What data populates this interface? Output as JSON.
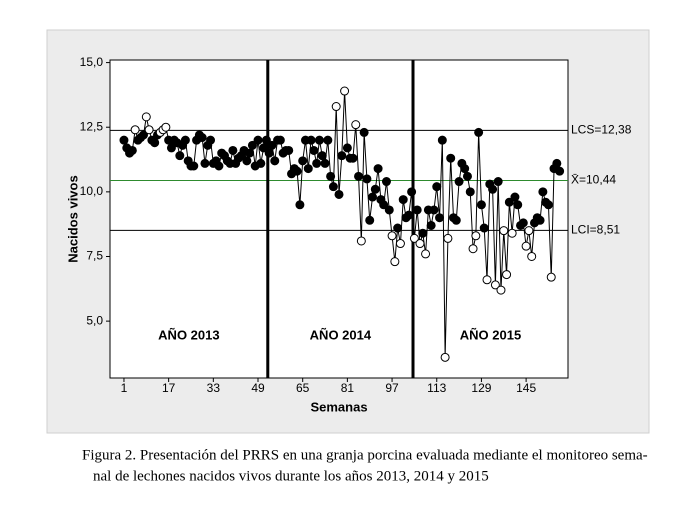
{
  "chart_data": {
    "type": "control",
    "y_label": "Nacidos vivos",
    "x_label": "Semanas",
    "xlim": [
      -4,
      160
    ],
    "ylim": [
      2.8,
      15.1
    ],
    "xticks": [
      1,
      17,
      33,
      49,
      65,
      81,
      97,
      113,
      129,
      145
    ],
    "yticks": [
      {
        "value": 15,
        "label": "15,0"
      },
      {
        "value": 12.5,
        "label": "12,5"
      },
      {
        "value": 10,
        "label": "10,0"
      },
      {
        "value": 7.5,
        "label": "7,5"
      },
      {
        "value": 5,
        "label": "5,0"
      }
    ],
    "reference_lines": [
      {
        "value": 12.38,
        "label": "LCS=12,38",
        "color": "#000000"
      },
      {
        "value": 10.44,
        "label": "X̄=10,44",
        "color": "#2e8b2e"
      },
      {
        "value": 8.51,
        "label": "LCI=8,51",
        "color": "#000000"
      }
    ],
    "period_dividers": [
      52.5,
      104.5
    ],
    "periods": [
      "AÑO 2013",
      "AÑO 2014",
      "AÑO 2015"
    ],
    "series": [
      {
        "color": "#000000",
        "x": [
          1,
          2,
          3,
          4,
          5,
          6,
          7,
          8,
          9,
          10,
          11,
          12,
          13,
          14,
          15,
          16,
          17,
          18,
          19,
          20,
          21,
          22,
          23,
          24,
          25,
          26,
          27,
          28,
          29,
          30,
          31,
          32,
          33,
          34,
          35,
          36,
          37,
          38,
          39,
          40,
          41,
          42,
          43,
          44,
          45,
          46,
          47,
          48,
          49,
          50,
          51,
          52,
          53,
          54,
          55,
          56,
          57,
          58,
          59,
          60,
          61,
          62,
          63,
          64,
          65,
          66,
          67,
          68,
          69,
          70,
          71,
          72,
          73,
          74,
          75,
          76,
          77,
          78,
          79,
          80,
          81,
          82,
          83,
          84,
          85,
          86,
          87,
          88,
          89,
          90,
          91,
          92,
          93,
          94,
          95,
          96,
          97,
          98,
          99,
          100,
          101,
          102,
          103,
          104,
          105,
          106,
          107,
          108,
          109,
          110,
          111,
          112,
          113,
          114,
          115,
          116,
          117,
          118,
          119,
          120,
          121,
          122,
          123,
          124,
          125,
          126,
          127,
          128,
          129,
          130,
          131,
          132,
          133,
          134,
          135,
          136,
          137,
          138,
          139,
          140,
          141,
          142,
          143,
          144,
          145,
          146,
          147,
          148,
          149,
          150,
          151,
          152,
          153,
          154,
          155,
          156,
          157
        ],
        "values": [
          12.0,
          11.7,
          11.5,
          11.6,
          12.4,
          12.0,
          12.1,
          12.2,
          12.9,
          12.4,
          12.0,
          11.9,
          12.2,
          12.3,
          12.4,
          12.5,
          12.0,
          11.7,
          12.0,
          11.9,
          11.4,
          11.8,
          12.0,
          11.2,
          11.0,
          11.0,
          12.0,
          12.2,
          12.1,
          11.1,
          11.8,
          12.0,
          11.1,
          11.2,
          11.0,
          11.5,
          11.4,
          11.2,
          11.1,
          11.6,
          11.1,
          11.3,
          11.4,
          11.6,
          11.2,
          11.5,
          11.8,
          11.0,
          12.0,
          11.1,
          11.7,
          12.0,
          11.5,
          11.8,
          11.2,
          12.0,
          12.0,
          11.5,
          11.6,
          11.6,
          10.7,
          10.9,
          10.8,
          9.5,
          11.2,
          12.0,
          10.9,
          12.0,
          11.6,
          11.1,
          12.0,
          11.4,
          11.1,
          12.0,
          10.6,
          10.2,
          13.3,
          9.9,
          11.4,
          13.9,
          11.7,
          11.3,
          11.3,
          12.6,
          10.6,
          8.1,
          12.3,
          10.5,
          8.9,
          9.8,
          10.1,
          10.9,
          9.7,
          9.5,
          10.4,
          9.3,
          8.3,
          7.3,
          8.6,
          8.0,
          9.7,
          9.0,
          9.1,
          10.0,
          8.2,
          9.3,
          8.0,
          8.4,
          7.6,
          9.3,
          8.7,
          9.3,
          10.2,
          9.0,
          12.0,
          3.6,
          8.2,
          11.3,
          9.0,
          8.9,
          10.4,
          11.1,
          10.9,
          10.6,
          10.0,
          7.8,
          8.3,
          12.3,
          9.5,
          8.6,
          6.6,
          10.3,
          10.1,
          6.4,
          10.4,
          6.2,
          8.5,
          6.8,
          9.6,
          8.4,
          9.8,
          9.5,
          8.7,
          8.8,
          7.9,
          8.5,
          7.5,
          8.8,
          9.0,
          8.9,
          10.0,
          9.6,
          9.5,
          6.7,
          10.9,
          11.1,
          10.8
        ],
        "open_markers": [
          5,
          9,
          10,
          14,
          15,
          16,
          77,
          80,
          84,
          86,
          97,
          98,
          100,
          105,
          107,
          109,
          116,
          117,
          126,
          127,
          131,
          134,
          136,
          137,
          138,
          140,
          145,
          146,
          147,
          154
        ]
      }
    ]
  },
  "caption": [
    "Figura 2. Presentación del PRRS en una granja porcina evaluada mediante el monitoreo sema-",
    "nal de lechones nacidos vivos durante los años 2013, 2014 y 2015"
  ]
}
